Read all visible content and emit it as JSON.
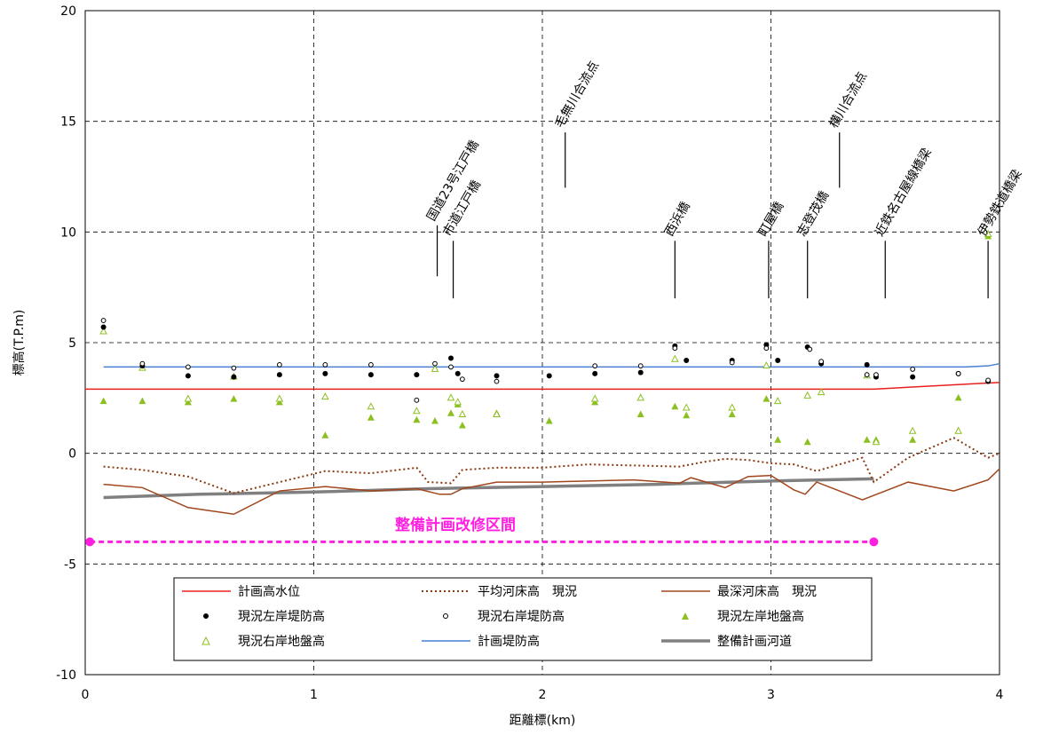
{
  "chart_data": {
    "type": "line",
    "xlabel": "距離標(km)",
    "ylabel": "標高(T.P.m)",
    "xlim": [
      0,
      4
    ],
    "ylim": [
      -10,
      20
    ],
    "x_ticks": [
      "0",
      "1",
      "2",
      "3",
      "4"
    ],
    "y_ticks": [
      "-10",
      "-5",
      "0",
      "5",
      "10",
      "15",
      "20"
    ],
    "grid": "dashed",
    "legend_position": "bottom-center",
    "colors": {
      "plan_high_water": "#e8201d",
      "avg_bed": "#8b3a12",
      "deep_bed": "#a0461c",
      "plan_levee": "#4a7fd4",
      "plan_channel": "#808080",
      "ground": "#8cc021",
      "section": "#ff1fe0",
      "leader": "#000000"
    },
    "legend": {
      "plan_high_water": "計画高水位",
      "avg_bed": "平均河床高　現況",
      "deep_bed": "最深河床高　現況",
      "left_levee": "現況左岸堤防高",
      "right_levee": "現況右岸堤防高",
      "left_ground": "現況左岸地盤高",
      "right_ground": "現況右岸地盤高",
      "plan_levee": "計画堤防高",
      "plan_channel": "整備計画河道"
    },
    "section": {
      "label": "整備計画改修区間",
      "x_start": 0.02,
      "x_end": 3.45,
      "y": -4
    },
    "annotations": [
      {
        "label": "国道23号江戸橋",
        "x": 1.54,
        "y_low": 8,
        "y_high": 10.3
      },
      {
        "label": "市道江戸橋",
        "x": 1.61,
        "y_low": 7,
        "y_high": 9.6
      },
      {
        "label": "毛無川合流点",
        "x": 2.1,
        "y_low": 12,
        "y_high": 14.5
      },
      {
        "label": "西浜橋",
        "x": 2.58,
        "y_low": 7,
        "y_high": 9.6
      },
      {
        "label": "町屋橋",
        "x": 2.99,
        "y_low": 7,
        "y_high": 9.6
      },
      {
        "label": "志登茂橋",
        "x": 3.16,
        "y_low": 7,
        "y_high": 9.6
      },
      {
        "label": "横川合流点",
        "x": 3.3,
        "y_low": 12,
        "y_high": 14.5
      },
      {
        "label": "近鉄名古屋線橋梁",
        "x": 3.5,
        "y_low": 7,
        "y_high": 9.6
      },
      {
        "label": "伊勢鉄道橋梁",
        "x": 3.95,
        "y_low": 7,
        "y_high": 9.6
      }
    ],
    "series": {
      "plan_high_water": {
        "x": [
          0.0,
          3.45,
          3.9,
          4.0
        ],
        "y": [
          2.9,
          2.9,
          3.15,
          3.2
        ]
      },
      "plan_levee": {
        "x": [
          0.08,
          3.85,
          3.95,
          4.0
        ],
        "y": [
          3.9,
          3.9,
          3.95,
          4.05
        ]
      },
      "avg_bed": {
        "x": [
          0.08,
          0.25,
          0.45,
          0.65,
          0.85,
          1.05,
          1.25,
          1.45,
          1.5,
          1.6,
          1.65,
          1.8,
          2.0,
          2.2,
          2.4,
          2.6,
          2.7,
          2.8,
          2.9,
          3.0,
          3.1,
          3.2,
          3.3,
          3.4,
          3.45,
          3.6,
          3.8,
          3.95,
          4.0
        ],
        "y": [
          -0.6,
          -0.75,
          -1.05,
          -1.8,
          -1.3,
          -0.8,
          -0.9,
          -0.65,
          -1.3,
          -1.35,
          -0.75,
          -0.65,
          -0.65,
          -0.5,
          -0.55,
          -0.6,
          -0.4,
          -0.25,
          -0.3,
          -0.45,
          -0.5,
          -0.8,
          -0.5,
          -0.2,
          -1.3,
          -0.2,
          0.7,
          -0.2,
          0.0
        ]
      },
      "deep_bed": {
        "x": [
          0.08,
          0.25,
          0.45,
          0.65,
          0.85,
          1.05,
          1.25,
          1.45,
          1.55,
          1.6,
          1.65,
          1.8,
          2.0,
          2.2,
          2.4,
          2.6,
          2.65,
          2.8,
          2.9,
          3.0,
          3.1,
          3.15,
          3.2,
          3.3,
          3.4,
          3.45,
          3.6,
          3.8,
          3.95,
          4.0
        ],
        "y": [
          -1.4,
          -1.55,
          -2.45,
          -2.75,
          -1.7,
          -1.5,
          -1.7,
          -1.6,
          -1.85,
          -1.85,
          -1.6,
          -1.3,
          -1.3,
          -1.25,
          -1.2,
          -1.35,
          -1.1,
          -1.55,
          -1.05,
          -1.0,
          -1.65,
          -1.85,
          -1.3,
          -1.7,
          -2.1,
          -1.9,
          -1.3,
          -1.7,
          -1.2,
          -0.7
        ]
      },
      "plan_channel": {
        "x": [
          0.08,
          0.5,
          1.0,
          1.5,
          2.0,
          2.5,
          3.0,
          3.45
        ],
        "y": [
          -2.0,
          -1.85,
          -1.75,
          -1.6,
          -1.5,
          -1.4,
          -1.25,
          -1.15
        ]
      },
      "left_levee": {
        "x": [
          0.08,
          0.25,
          0.45,
          0.65,
          0.85,
          1.05,
          1.25,
          1.45,
          1.6,
          1.63,
          1.8,
          2.03,
          2.23,
          2.43,
          2.58,
          2.63,
          2.83,
          2.98,
          3.03,
          3.16,
          3.22,
          3.42,
          3.46,
          3.62,
          3.82,
          3.95
        ],
        "y": [
          5.7,
          3.95,
          3.5,
          3.45,
          3.55,
          3.6,
          3.55,
          3.55,
          4.3,
          3.6,
          3.5,
          3.5,
          3.6,
          3.65,
          4.85,
          4.2,
          4.2,
          4.9,
          4.2,
          4.8,
          4.05,
          4.0,
          3.45,
          3.45,
          3.6,
          3.25
        ]
      },
      "right_levee": {
        "x": [
          0.08,
          0.25,
          0.45,
          0.65,
          0.85,
          1.05,
          1.25,
          1.45,
          1.53,
          1.6,
          1.65,
          1.8,
          2.23,
          2.43,
          2.58,
          2.83,
          2.98,
          3.17,
          3.22,
          3.42,
          3.46,
          3.62,
          3.82,
          3.95
        ],
        "y": [
          6.0,
          4.05,
          3.9,
          3.85,
          4.0,
          4.0,
          4.0,
          2.4,
          4.05,
          3.9,
          3.35,
          3.25,
          3.95,
          3.95,
          4.75,
          4.1,
          4.75,
          4.7,
          4.15,
          3.55,
          3.55,
          3.8,
          3.6,
          3.3
        ]
      },
      "left_ground": {
        "x": [
          0.08,
          0.25,
          0.45,
          0.65,
          0.85,
          1.05,
          1.25,
          1.45,
          1.53,
          1.6,
          1.63,
          1.65,
          1.8,
          2.03,
          2.23,
          2.43,
          2.58,
          2.63,
          2.83,
          2.98,
          3.03,
          3.16,
          3.42,
          3.46,
          3.62,
          3.82,
          3.95
        ],
        "y": [
          2.35,
          2.35,
          2.3,
          2.45,
          2.3,
          0.8,
          1.6,
          1.5,
          1.45,
          1.8,
          2.2,
          1.25,
          1.8,
          1.45,
          2.3,
          1.75,
          2.1,
          1.7,
          1.75,
          2.45,
          0.6,
          0.5,
          0.6,
          0.6,
          0.6,
          2.5,
          9.8
        ]
      },
      "right_ground": {
        "x": [
          0.08,
          0.25,
          0.45,
          0.65,
          0.85,
          1.05,
          1.25,
          1.45,
          1.53,
          1.6,
          1.63,
          1.65,
          1.8,
          2.23,
          2.43,
          2.58,
          2.63,
          2.83,
          2.98,
          3.03,
          3.16,
          3.22,
          3.42,
          3.46,
          3.62,
          3.82,
          3.95
        ],
        "y": [
          5.5,
          3.85,
          2.45,
          3.45,
          2.45,
          2.55,
          2.1,
          1.9,
          3.8,
          2.5,
          2.3,
          1.75,
          1.75,
          2.45,
          2.5,
          4.25,
          2.05,
          2.05,
          3.95,
          2.35,
          2.6,
          2.75,
          3.5,
          0.5,
          1.0,
          1.0,
          9.9
        ]
      }
    }
  }
}
